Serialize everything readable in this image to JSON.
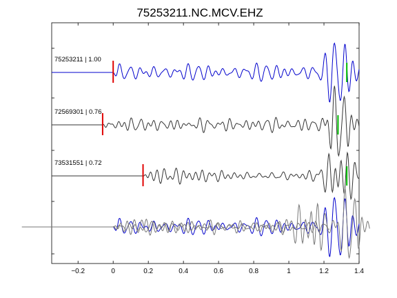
{
  "chart_data": {
    "type": "line",
    "title": "75253211.NC.MCV.EHZ",
    "xlabel": "",
    "ylabel": "",
    "xlim": [
      -0.35,
      1.4
    ],
    "xticks": [
      -0.2,
      0,
      0.2,
      0.4,
      0.6,
      0.8,
      1,
      1.2,
      1.4
    ],
    "xtick_labels": [
      "−0.2",
      "0",
      "0.2",
      "0.4",
      "0.6",
      "0.8",
      "1",
      "1.2",
      "1.4"
    ],
    "grid": false,
    "colors": {
      "reference": "#0000cc",
      "other": "#333333",
      "pick_p": "#e00000",
      "pick_s": "#00bb00"
    },
    "series": [
      {
        "label": "75253211 | 1.00",
        "color": "#0000cc",
        "p_pick": 0.0,
        "s_pick": 1.33,
        "seed": 11
      },
      {
        "label": "72569301 | 0.76",
        "color": "#333333",
        "p_pick": -0.06,
        "s_pick": 1.28,
        "seed": 23
      },
      {
        "label": "73531551 | 0.72",
        "color": "#333333",
        "p_pick": 0.17,
        "s_pick": 1.33,
        "seed": 37
      }
    ]
  }
}
